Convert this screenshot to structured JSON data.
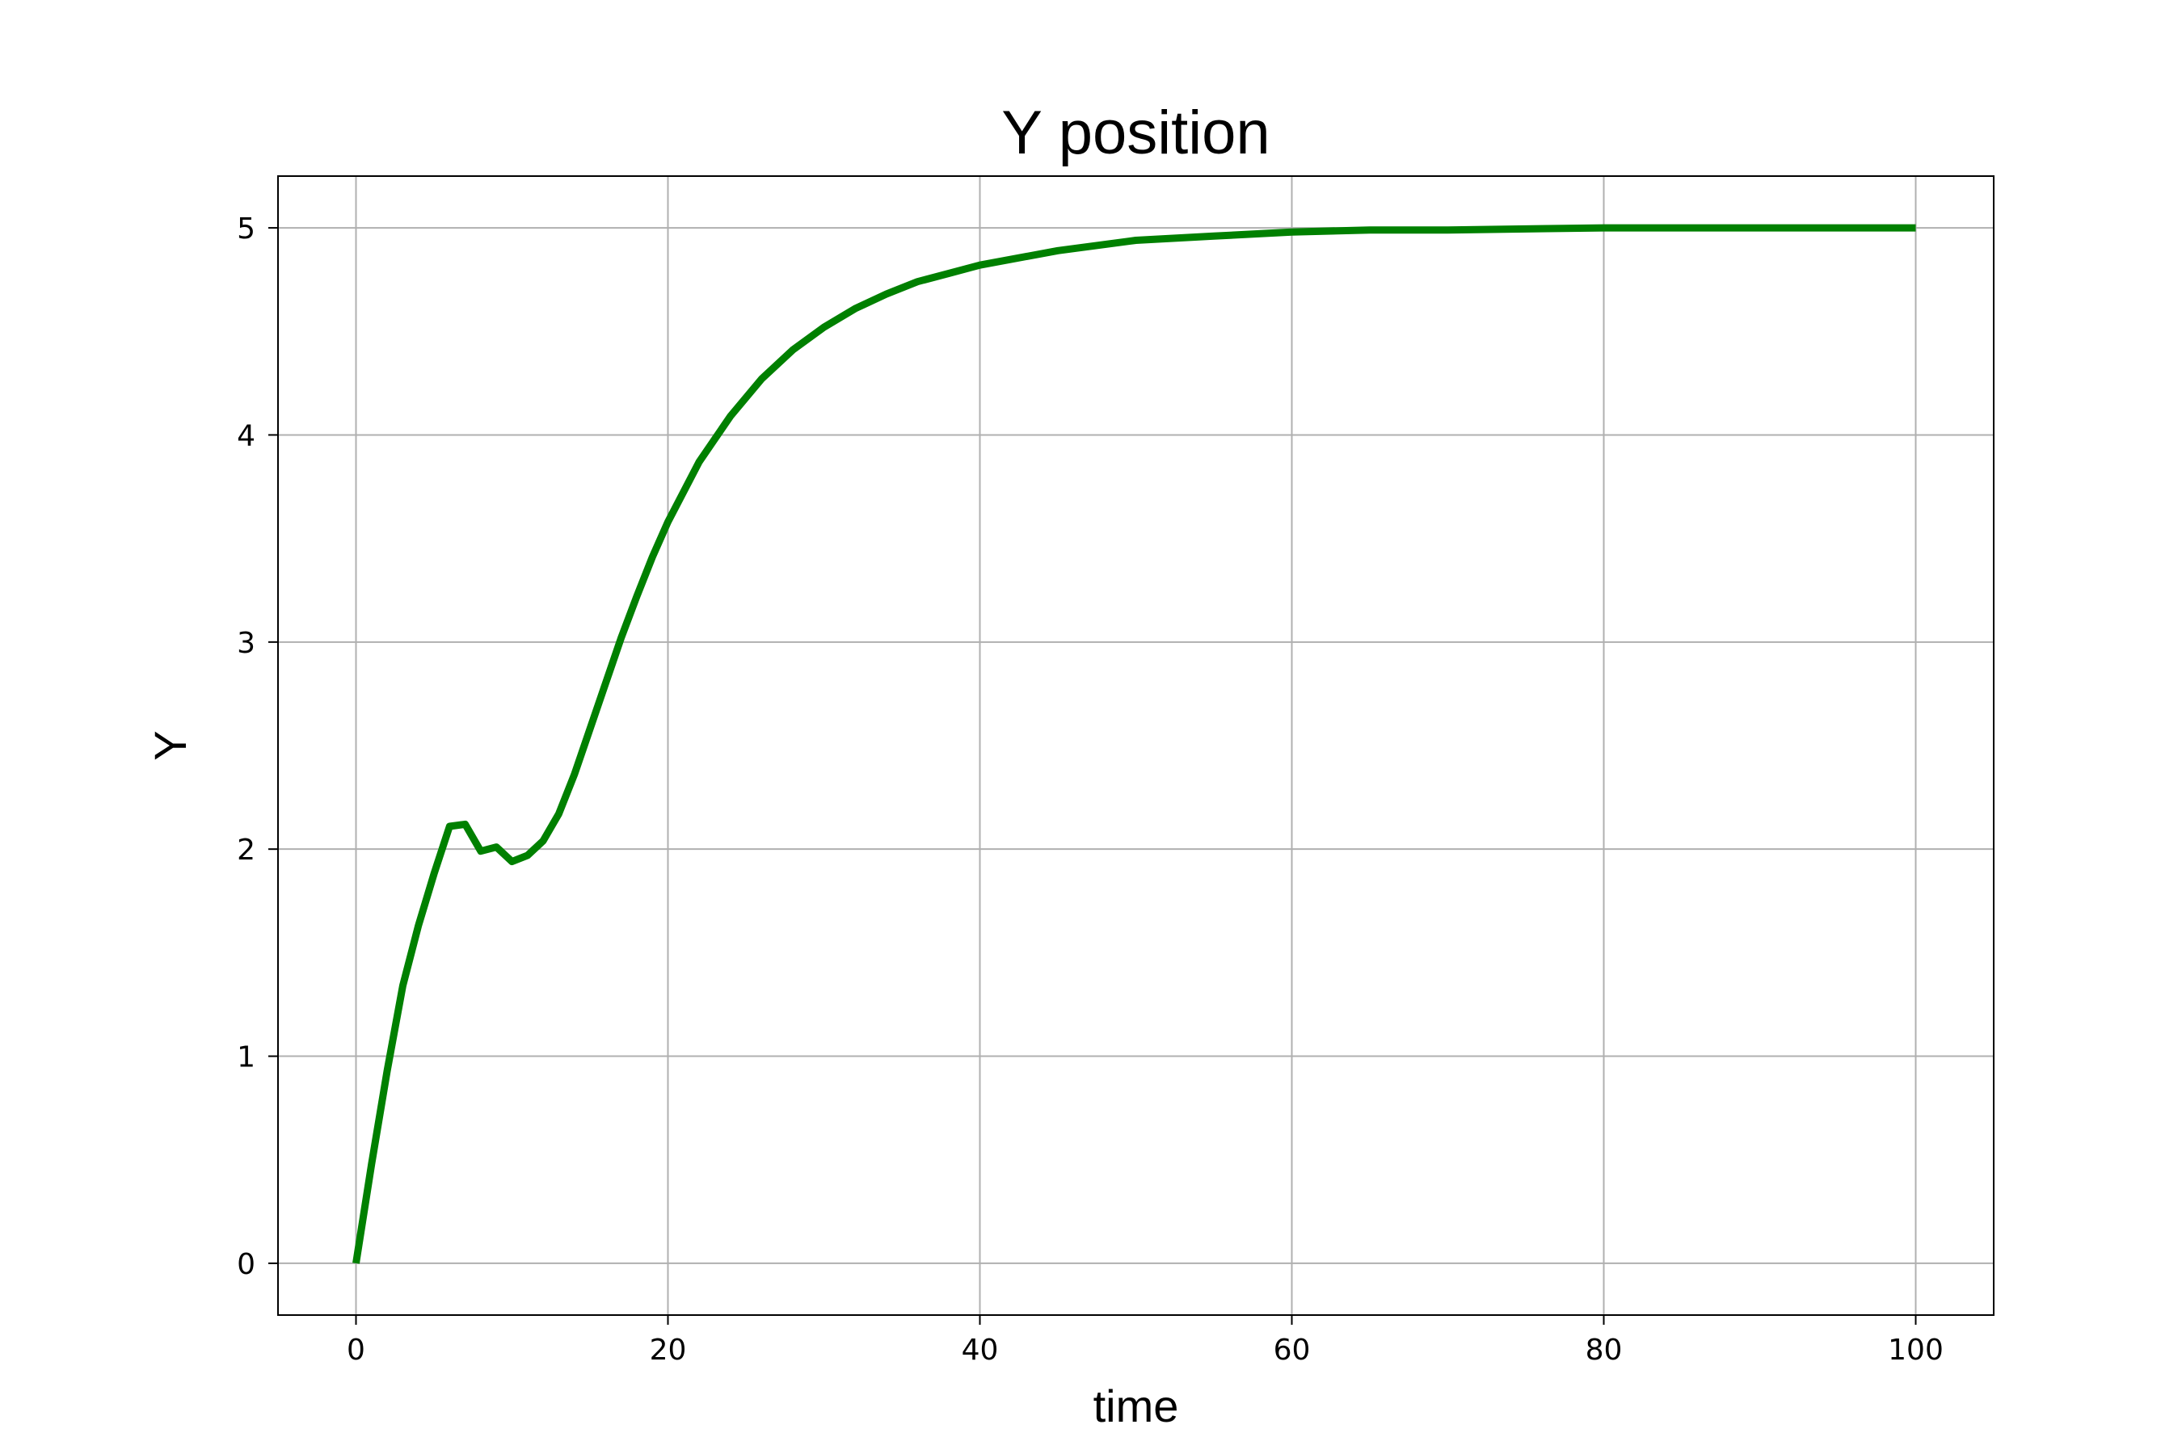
{
  "chart_data": {
    "type": "line",
    "title": "Y position",
    "xlabel": "time",
    "ylabel": "Y",
    "xlim": [
      -5,
      105
    ],
    "ylim": [
      -0.25,
      5.25
    ],
    "xticks": [
      0,
      20,
      40,
      60,
      80,
      100
    ],
    "yticks": [
      0,
      1,
      2,
      3,
      4,
      5
    ],
    "grid": true,
    "line_color": "#008000",
    "grid_color": "#b0b0b0",
    "series": [
      {
        "x": [
          0,
          1,
          2,
          3,
          4,
          5,
          6,
          7,
          8,
          9,
          10,
          11,
          12,
          13,
          14,
          15,
          16,
          17,
          18,
          19,
          20,
          22,
          24,
          26,
          28,
          30,
          32,
          34,
          36,
          38,
          40,
          45,
          50,
          55,
          60,
          65,
          70,
          80,
          90,
          100
        ],
        "values": [
          0,
          0.48,
          0.93,
          1.34,
          1.63,
          1.88,
          2.11,
          2.12,
          1.99,
          2.01,
          1.94,
          1.97,
          2.04,
          2.17,
          2.36,
          2.58,
          2.8,
          3.02,
          3.22,
          3.41,
          3.58,
          3.87,
          4.09,
          4.27,
          4.41,
          4.52,
          4.61,
          4.68,
          4.74,
          4.78,
          4.82,
          4.89,
          4.94,
          4.96,
          4.98,
          4.99,
          4.99,
          5.0,
          5.0,
          5.0
        ]
      }
    ]
  }
}
